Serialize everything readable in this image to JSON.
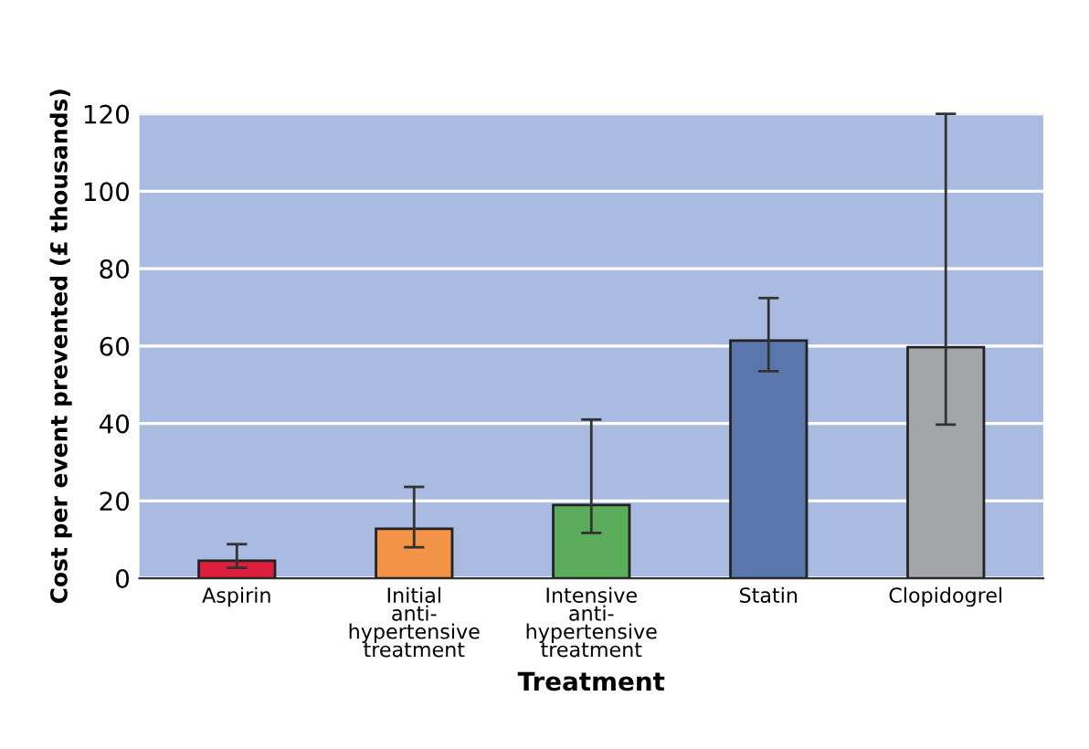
{
  "chart_data": {
    "type": "bar",
    "xlabel": "Treatment",
    "ylabel": "Cost per event prevented (£ thousands)",
    "categories": [
      "Aspirin",
      "Initial\nanti-\nhypertensive\ntreatment",
      "Intensive\nanti-\nhypertensive\ntreatment",
      "Statin",
      "Clopidogrel"
    ],
    "values": [
      4.5,
      12.8,
      18.9,
      61.4,
      59.7
    ],
    "colors": [
      "#dc1f3c",
      "#f39347",
      "#5bac5b",
      "#5a77ad",
      "#a4a5a9"
    ],
    "errors": [
      [
        2.7,
        8.8
      ],
      [
        8.0,
        23.6
      ],
      [
        11.7,
        41
      ],
      [
        53.5,
        72.4
      ],
      [
        39.7,
        120
      ]
    ],
    "ylim": [
      0,
      120
    ],
    "yticks": [
      0,
      20,
      40,
      60,
      80,
      100,
      120
    ],
    "grid": "y"
  }
}
